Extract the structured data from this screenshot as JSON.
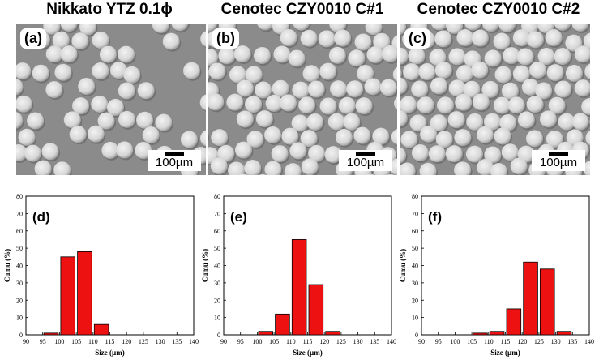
{
  "columns": [
    {
      "title": "Nikkato YTZ 0.1ϕ",
      "sem_label": "(a)",
      "scale": "100µm"
    },
    {
      "title": "Cenotec CZY0010 C#1",
      "sem_label": "(b)",
      "scale": "100µm"
    },
    {
      "title": "Cenotec CZY0010 C#2",
      "sem_label": "(c)",
      "scale": "100µm"
    }
  ],
  "colors": {
    "bar_fill": "#ee1111",
    "bar_stroke": "#000000",
    "sem_background": "#8b8b8b",
    "particle": "#d6d6d6"
  },
  "chart_data": [
    {
      "type": "bar",
      "label": "(d)",
      "xlabel": "Size (µm)",
      "ylabel": "Cumu (%)",
      "xlim": [
        90,
        140
      ],
      "ylim": [
        0,
        80
      ],
      "xticks": [
        90,
        95,
        100,
        105,
        110,
        115,
        120,
        125,
        130,
        135,
        140
      ],
      "yticks": [
        0,
        10,
        20,
        30,
        40,
        50,
        60,
        70,
        80
      ],
      "bar_width": 5,
      "x": [
        97.5,
        102.5,
        107.5,
        112.5
      ],
      "values": [
        1,
        45,
        48,
        6
      ]
    },
    {
      "type": "bar",
      "label": "(e)",
      "xlabel": "Size (µm)",
      "ylabel": "Cumu (%)",
      "xlim": [
        90,
        140
      ],
      "ylim": [
        0,
        80
      ],
      "xticks": [
        90,
        95,
        100,
        105,
        110,
        115,
        120,
        125,
        130,
        135,
        140
      ],
      "yticks": [
        0,
        10,
        20,
        30,
        40,
        50,
        60,
        70,
        80
      ],
      "bar_width": 5,
      "x": [
        102.5,
        107.5,
        112.5,
        117.5,
        122.5
      ],
      "values": [
        2,
        12,
        55,
        29,
        2
      ]
    },
    {
      "type": "bar",
      "label": "(f)",
      "xlabel": "Size (µm)",
      "ylabel": "Cumu (%)",
      "xlim": [
        90,
        140
      ],
      "ylim": [
        0,
        80
      ],
      "xticks": [
        90,
        95,
        100,
        105,
        110,
        115,
        120,
        125,
        130,
        135,
        140
      ],
      "yticks": [
        0,
        10,
        20,
        30,
        40,
        50,
        60,
        70,
        80
      ],
      "bar_width": 5,
      "x": [
        107.5,
        112.5,
        117.5,
        122.5,
        127.5,
        132.5
      ],
      "values": [
        1,
        2,
        15,
        42,
        38,
        2
      ]
    }
  ]
}
